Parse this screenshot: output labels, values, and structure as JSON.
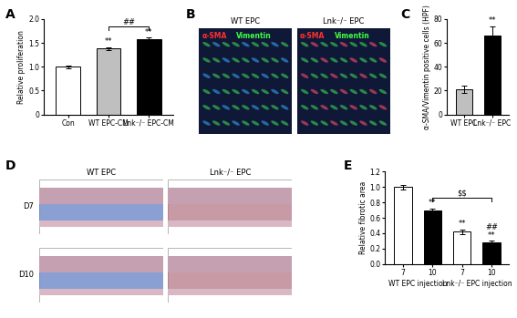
{
  "chart_data": [
    {
      "panel": "A",
      "type": "bar",
      "y_label": "Relative proliferation",
      "categories": [
        "Con",
        "WT EPC-CM",
        "Lnk⁻/⁻ EPC-CM"
      ],
      "values": [
        1.0,
        1.38,
        1.58
      ],
      "errors": [
        0.03,
        0.03,
        0.03
      ],
      "colors": [
        "#ffffff",
        "#bfbfbf",
        "#000000"
      ],
      "ylim": [
        0,
        2.0
      ],
      "yticks": [
        0,
        0.5,
        1.0,
        1.5,
        2.0
      ],
      "marks": [
        [],
        [
          "**"
        ],
        [
          "**"
        ]
      ],
      "bracket": {
        "text": "##",
        "bars": [
          1,
          2
        ]
      }
    },
    {
      "panel": "C",
      "type": "bar",
      "y_label": "α-SMA/Vimentin positive cells (HPF)",
      "categories": [
        "WT EPC",
        "Lnk⁻/⁻ EPC"
      ],
      "values": [
        21,
        66
      ],
      "errors": [
        3,
        8
      ],
      "colors": [
        "#bfbfbf",
        "#000000"
      ],
      "ylim": [
        0,
        80
      ],
      "yticks": [
        0,
        20,
        40,
        60,
        80
      ],
      "marks": [
        [],
        [
          "**"
        ]
      ]
    },
    {
      "panel": "E",
      "type": "bar",
      "y_label": "Relative fibrotic area",
      "categories": [
        "7",
        "10",
        "7",
        "10"
      ],
      "groups": [
        "WT EPC injection",
        "WT EPC injection",
        "Lnk⁻/⁻ EPC injection",
        "Lnk⁻/⁻ EPC injection"
      ],
      "values": [
        1.0,
        0.69,
        0.42,
        0.28
      ],
      "errors": [
        0.03,
        0.03,
        0.03,
        0.02
      ],
      "colors": [
        "#ffffff",
        "#000000",
        "#ffffff",
        "#000000"
      ],
      "ylim": [
        0.0,
        1.2
      ],
      "yticks": [
        0.0,
        0.2,
        0.4,
        0.6,
        0.8,
        1.0,
        1.2
      ],
      "marks": [
        [],
        [
          "**"
        ],
        [
          "**"
        ],
        [
          "**",
          "##"
        ]
      ],
      "bracket": {
        "text": "$$",
        "bars": [
          1,
          3
        ]
      }
    }
  ],
  "image_panels": [
    {
      "panel": "B",
      "stains": [
        {
          "text": "α-SMA",
          "color": "#ff3030"
        },
        {
          "text": "Vimentin",
          "color": "#40ff40"
        }
      ],
      "columns": [
        "WT EPC",
        "Lnk⁻/⁻ EPC"
      ]
    },
    {
      "panel": "D",
      "columns": [
        "WT EPC",
        "Lnk⁻/⁻ EPC"
      ],
      "rows": [
        "D7",
        "D10"
      ]
    }
  ]
}
